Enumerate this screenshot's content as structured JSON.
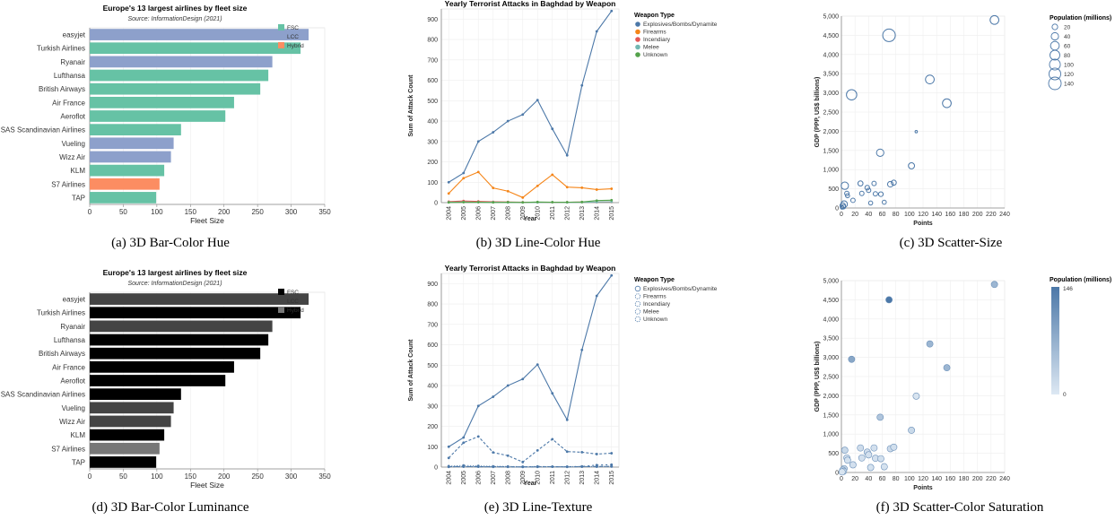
{
  "colors": {
    "fsc": "#66c2a5",
    "lcc": "#8da0cb",
    "hybrid": "#fc8d62",
    "lum_fsc": "#000000",
    "lum_lcc": "#444444",
    "lum_hybrid": "#777777",
    "expl": "#4c78a8",
    "fire": "#f58518",
    "incend": "#e45756",
    "melee": "#72b7b2",
    "unknown": "#54a24b",
    "scatter": "#4c78a8",
    "sat_low": "#dde8f3",
    "sat_high": "#4c78a8"
  },
  "captions": {
    "a": "(a) 3D Bar-Color Hue",
    "b": "(b) 3D Line-Color Hue",
    "c": "(c) 3D Scatter-Size",
    "d": "(d) 3D Bar-Color Luminance",
    "e": "(e) 3D Line-Texture",
    "f": "(f) 3D Scatter-Color Saturation"
  },
  "chart_data": [
    {
      "type": "bar",
      "panel": "a",
      "title": "Europe's 13 largest airlines by fleet size",
      "subtitle": "Source: InformationDesign (2021)",
      "xlabel": "Fleet Size",
      "xlim": [
        0,
        350
      ],
      "x_ticks": [
        0,
        50,
        100,
        150,
        200,
        250,
        300,
        350
      ],
      "encoding": "hue",
      "categories": [
        "easyjet",
        "Turkish Airlines",
        "Ryanair",
        "Lufthansa",
        "British Airways",
        "Air France",
        "Aeroflot",
        "SAS Scandinavian Airlines",
        "Vueling",
        "Wizz Air",
        "KLM",
        "S7 Airlines",
        "TAP"
      ],
      "values": [
        326,
        314,
        272,
        266,
        254,
        215,
        202,
        136,
        125,
        121,
        111,
        104,
        99
      ],
      "groups": [
        "LCC",
        "FSC",
        "LCC",
        "FSC",
        "FSC",
        "FSC",
        "FSC",
        "FSC",
        "LCC",
        "LCC",
        "FSC",
        "Hybrid",
        "FSC"
      ],
      "legend": [
        "FSC",
        "LCC",
        "Hybrid"
      ]
    },
    {
      "type": "bar",
      "panel": "d",
      "title": "Europe's 13 largest airlines by fleet size",
      "subtitle": "Source: InformationDesign (2021)",
      "xlabel": "Fleet Size",
      "xlim": [
        0,
        350
      ],
      "x_ticks": [
        0,
        50,
        100,
        150,
        200,
        250,
        300,
        350
      ],
      "encoding": "luminance",
      "categories": [
        "easyjet",
        "Turkish Airlines",
        "Ryanair",
        "Lufthansa",
        "British Airways",
        "Air France",
        "Aeroflot",
        "SAS Scandinavian Airlines",
        "Vueling",
        "Wizz Air",
        "KLM",
        "S7 Airlines",
        "TAP"
      ],
      "values": [
        326,
        314,
        272,
        266,
        254,
        215,
        202,
        136,
        125,
        121,
        111,
        104,
        99
      ],
      "groups": [
        "LCC",
        "FSC",
        "LCC",
        "FSC",
        "FSC",
        "FSC",
        "FSC",
        "FSC",
        "LCC",
        "LCC",
        "FSC",
        "Hybrid",
        "FSC"
      ],
      "legend": [
        "FSC",
        "LCC",
        "Hybrid"
      ]
    },
    {
      "type": "line",
      "panel": "b",
      "title": "Yearly Terrorist Attacks in Baghdad by Weapon",
      "xlabel": "Year",
      "ylabel": "Sum of Attack Count",
      "ylim": [
        0,
        950
      ],
      "y_ticks": [
        0,
        100,
        200,
        300,
        400,
        500,
        600,
        700,
        800,
        900
      ],
      "encoding": "hue",
      "legend_title": "Weapon Type",
      "x": [
        "2004",
        "2005",
        "2006",
        "2007",
        "2008",
        "2009",
        "2010",
        "2011",
        "2012",
        "2013",
        "2014",
        "2015"
      ],
      "series": [
        {
          "name": "Explosives/Bombs/Dynamite",
          "values": [
            100,
            145,
            300,
            345,
            400,
            432,
            503,
            362,
            232,
            575,
            840,
            940
          ]
        },
        {
          "name": "Firearms",
          "values": [
            45,
            120,
            150,
            72,
            56,
            25,
            82,
            137,
            76,
            73,
            64,
            68
          ]
        },
        {
          "name": "Incendiary",
          "values": [
            5,
            8,
            6,
            4,
            3,
            2,
            2,
            2,
            2,
            3,
            2,
            3
          ]
        },
        {
          "name": "Melee",
          "values": [
            2,
            3,
            2,
            2,
            1,
            1,
            1,
            2,
            1,
            2,
            3,
            4
          ]
        },
        {
          "name": "Unknown",
          "values": [
            1,
            2,
            2,
            1,
            2,
            1,
            3,
            2,
            2,
            3,
            10,
            12
          ]
        }
      ]
    },
    {
      "type": "line",
      "panel": "e",
      "title": "Yearly Terrorist Attacks in Baghdad by Weapon",
      "xlabel": "Year",
      "ylabel": "Sum of Attack Count",
      "ylim": [
        0,
        950
      ],
      "y_ticks": [
        0,
        100,
        200,
        300,
        400,
        500,
        600,
        700,
        800,
        900
      ],
      "encoding": "texture",
      "legend_title": "Weapon Type",
      "x": [
        "2004",
        "2005",
        "2006",
        "2007",
        "2008",
        "2009",
        "2010",
        "2011",
        "2012",
        "2013",
        "2014",
        "2015"
      ],
      "series": [
        {
          "name": "Explosives/Bombs/Dynamite",
          "values": [
            100,
            145,
            300,
            345,
            400,
            432,
            503,
            362,
            232,
            575,
            840,
            940
          ]
        },
        {
          "name": "Firearms",
          "values": [
            45,
            120,
            150,
            72,
            56,
            25,
            82,
            137,
            76,
            73,
            64,
            68
          ]
        },
        {
          "name": "Incendiary",
          "values": [
            5,
            8,
            6,
            4,
            3,
            2,
            2,
            2,
            2,
            3,
            2,
            3
          ]
        },
        {
          "name": "Melee",
          "values": [
            2,
            3,
            2,
            2,
            1,
            1,
            1,
            2,
            1,
            2,
            3,
            4
          ]
        },
        {
          "name": "Unknown",
          "values": [
            1,
            2,
            2,
            1,
            2,
            1,
            3,
            2,
            2,
            3,
            10,
            12
          ]
        }
      ]
    },
    {
      "type": "scatter",
      "panel": "c",
      "xlabel": "Points",
      "ylabel": "GDP (PPP, US$ billions)",
      "xlim": [
        0,
        240
      ],
      "ylim": [
        0,
        5000
      ],
      "x_ticks": [
        0,
        20,
        40,
        60,
        80,
        100,
        120,
        140,
        160,
        180,
        200,
        220,
        240
      ],
      "y_ticks": [
        0,
        500,
        1000,
        1500,
        2000,
        2500,
        3000,
        3500,
        4000,
        4500,
        5000
      ],
      "encoding": "size",
      "legend_title": "Population (millions)",
      "size_legend": [
        20,
        40,
        60,
        80,
        100,
        120,
        140
      ],
      "points": [
        {
          "x": 225,
          "y": 4900,
          "pop": 60
        },
        {
          "x": 70,
          "y": 4500,
          "pop": 140
        },
        {
          "x": 15,
          "y": 2950,
          "pop": 90
        },
        {
          "x": 130,
          "y": 3350,
          "pop": 60
        },
        {
          "x": 155,
          "y": 2730,
          "pop": 60
        },
        {
          "x": 57,
          "y": 1440,
          "pop": 40
        },
        {
          "x": 103,
          "y": 1100,
          "pop": 25
        },
        {
          "x": 110,
          "y": 1990,
          "pop": 1
        },
        {
          "x": 5,
          "y": 580,
          "pop": 40
        },
        {
          "x": 28,
          "y": 640,
          "pop": 15
        },
        {
          "x": 48,
          "y": 640,
          "pop": 10
        },
        {
          "x": 72,
          "y": 620,
          "pop": 20
        },
        {
          "x": 77,
          "y": 660,
          "pop": 15
        },
        {
          "x": 38,
          "y": 530,
          "pop": 12
        },
        {
          "x": 40,
          "y": 460,
          "pop": 10
        },
        {
          "x": 8,
          "y": 380,
          "pop": 10
        },
        {
          "x": 9,
          "y": 320,
          "pop": 8
        },
        {
          "x": 17,
          "y": 200,
          "pop": 10
        },
        {
          "x": 30,
          "y": 380,
          "pop": 10
        },
        {
          "x": 50,
          "y": 370,
          "pop": 10
        },
        {
          "x": 58,
          "y": 360,
          "pop": 12
        },
        {
          "x": 43,
          "y": 130,
          "pop": 8
        },
        {
          "x": 63,
          "y": 150,
          "pop": 8
        },
        {
          "x": 4,
          "y": 100,
          "pop": 30
        },
        {
          "x": 2,
          "y": 60,
          "pop": 20
        },
        {
          "x": 3,
          "y": 30,
          "pop": 10
        },
        {
          "x": 1,
          "y": 15,
          "pop": 5
        }
      ]
    },
    {
      "type": "scatter",
      "panel": "f",
      "xlabel": "Points",
      "ylabel": "GDP (PPP, US$ billions)",
      "xlim": [
        0,
        240
      ],
      "ylim": [
        0,
        5000
      ],
      "x_ticks": [
        0,
        20,
        40,
        60,
        80,
        100,
        120,
        140,
        160,
        180,
        200,
        220,
        240
      ],
      "y_ticks": [
        0,
        500,
        1000,
        1500,
        2000,
        2500,
        3000,
        3500,
        4000,
        4500,
        5000
      ],
      "encoding": "saturation",
      "legend_title": "Population (millions)",
      "legend_max": "146",
      "legend_min": "0",
      "points": [
        {
          "x": 225,
          "y": 4900,
          "pop": 65
        },
        {
          "x": 70,
          "y": 4500,
          "pop": 146
        },
        {
          "x": 15,
          "y": 2950,
          "pop": 85
        },
        {
          "x": 130,
          "y": 3350,
          "pop": 65
        },
        {
          "x": 155,
          "y": 2730,
          "pop": 65
        },
        {
          "x": 57,
          "y": 1440,
          "pop": 45
        },
        {
          "x": 103,
          "y": 1100,
          "pop": 20
        },
        {
          "x": 110,
          "y": 1990,
          "pop": 5
        },
        {
          "x": 5,
          "y": 580,
          "pop": 20
        },
        {
          "x": 28,
          "y": 640,
          "pop": 15
        },
        {
          "x": 48,
          "y": 640,
          "pop": 10
        },
        {
          "x": 72,
          "y": 620,
          "pop": 15
        },
        {
          "x": 77,
          "y": 660,
          "pop": 12
        },
        {
          "x": 38,
          "y": 530,
          "pop": 10
        },
        {
          "x": 40,
          "y": 460,
          "pop": 10
        },
        {
          "x": 8,
          "y": 380,
          "pop": 10
        },
        {
          "x": 9,
          "y": 320,
          "pop": 8
        },
        {
          "x": 17,
          "y": 200,
          "pop": 10
        },
        {
          "x": 30,
          "y": 380,
          "pop": 10
        },
        {
          "x": 50,
          "y": 370,
          "pop": 10
        },
        {
          "x": 58,
          "y": 360,
          "pop": 12
        },
        {
          "x": 43,
          "y": 130,
          "pop": 8
        },
        {
          "x": 63,
          "y": 150,
          "pop": 8
        },
        {
          "x": 4,
          "y": 100,
          "pop": 25
        },
        {
          "x": 2,
          "y": 60,
          "pop": 20
        },
        {
          "x": 3,
          "y": 30,
          "pop": 10
        },
        {
          "x": 1,
          "y": 15,
          "pop": 5
        }
      ]
    }
  ]
}
